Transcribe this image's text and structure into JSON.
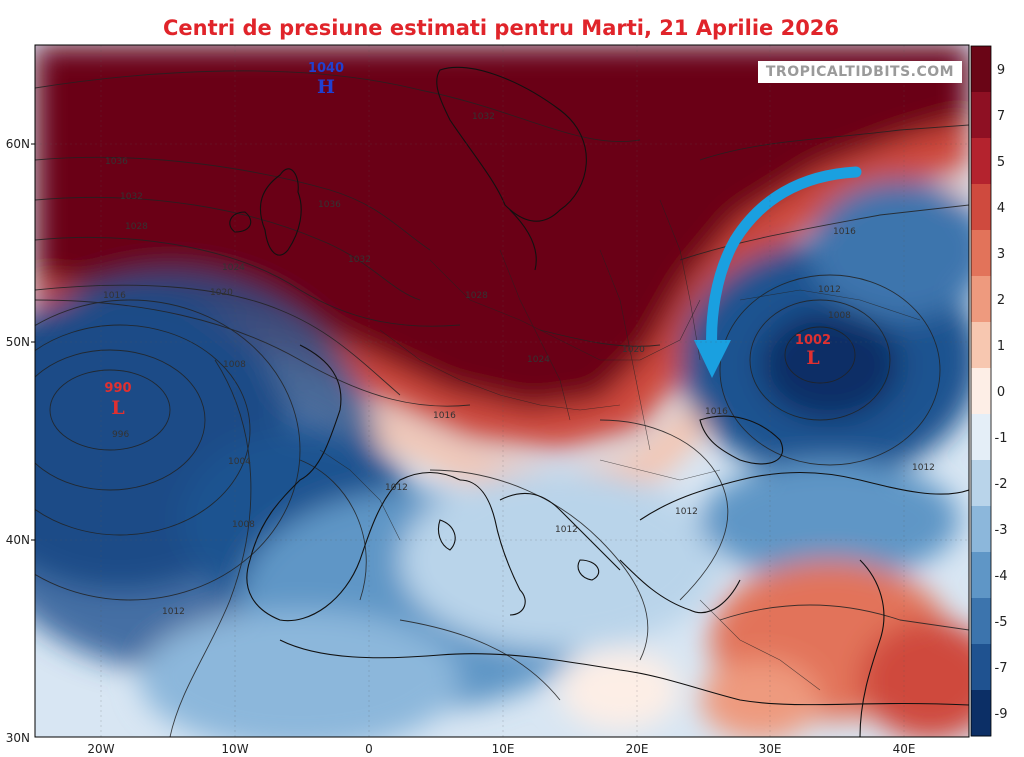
{
  "title": "Centri de presiune estimati pentru Marti, 21 Aprilie 2026",
  "watermark": "TROPICALTIDBITS.COM",
  "latitude_labels": [
    "60N",
    "50N",
    "40N",
    "30N"
  ],
  "longitude_labels": [
    "20W",
    "10W",
    "0",
    "10E",
    "20E",
    "30E",
    "40E"
  ],
  "colorbar": {
    "ticks": [
      "9",
      "7",
      "5",
      "4",
      "3",
      "2",
      "1",
      "0",
      "-1",
      "-2",
      "-3",
      "-4",
      "-5",
      "-7",
      "-9"
    ],
    "colors": [
      "#6a0516",
      "#8e1023",
      "#b4232e",
      "#cf4a3e",
      "#e2735a",
      "#ee9a7e",
      "#f7c7b0",
      "#fdeee6",
      "#e4eef7",
      "#b9d4ea",
      "#8cb7db",
      "#5f96c6",
      "#3c74ad",
      "#1f5290",
      "#0c2f66"
    ]
  },
  "pressure_centers": [
    {
      "type": "H",
      "value": "1040",
      "color": "#2040d0"
    },
    {
      "type": "L",
      "value": "990",
      "color": "#e03030"
    },
    {
      "type": "L",
      "value": "1002",
      "color": "#e03030"
    }
  ],
  "isobar_labels": [
    "1036",
    "1032",
    "1028",
    "1020",
    "1016",
    "1024",
    "1032",
    "1036",
    "1032",
    "1028",
    "1024",
    "1020",
    "1016",
    "1012",
    "1008",
    "1004",
    "996",
    "1012",
    "1008",
    "1016",
    "1012",
    "1016",
    "1012",
    "1012",
    "1012",
    "1008"
  ],
  "arrow": {
    "color": "#1aa0e0",
    "meaning": "air mass movement"
  }
}
